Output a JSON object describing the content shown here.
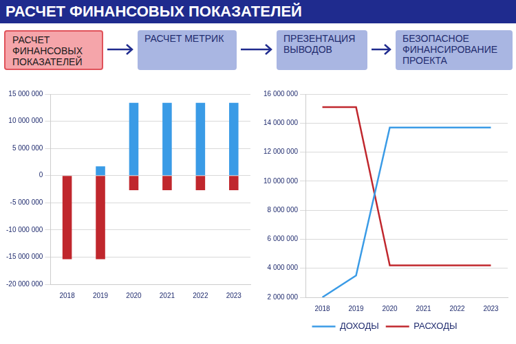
{
  "title": "РАСЧЕТ ФИНАНСОВЫХ ПОКАЗАТЕЛЕЙ",
  "steps": [
    "РАСЧЕТ ФИНАНСОВЫХ ПОКАЗАТЕЛЕЙ",
    "РАСЧЕТ МЕТРИК",
    "ПРЕЗЕНТАЦИЯ ВЫВОДОВ",
    "БЕЗОПАСНОЕ ФИНАНСИРОВАНИЕ ПРОЕКТА"
  ],
  "chart_data": [
    {
      "type": "bar",
      "categories": [
        "2018",
        "2019",
        "2020",
        "2021",
        "2022",
        "2023"
      ],
      "series": [
        {
          "color": "#3a9be6",
          "values": [
            null,
            1700000,
            13400000,
            13400000,
            13400000,
            13400000
          ]
        },
        {
          "color": "#c0272d",
          "values": [
            -15400000,
            -15400000,
            -2700000,
            -2700000,
            -2700000,
            -2700000
          ]
        }
      ],
      "stacked": true,
      "ylim": [
        -20000000,
        15000000
      ],
      "yticks": [
        {
          "value": -20000000,
          "label": "-20 000 000"
        },
        {
          "value": -15000000,
          "label": "-15 000 000"
        },
        {
          "value": -10000000,
          "label": "-10 000 000"
        },
        {
          "value": -5000000,
          "label": "-5 000 000"
        },
        0,
        {
          "value": 5000000,
          "label": "5 000 000"
        },
        {
          "value": 10000000,
          "label": "10 000 000"
        },
        {
          "value": 15000000,
          "label": "15 000 000"
        }
      ],
      "grid": true
    },
    {
      "type": "line",
      "categories": [
        "2018",
        "2019",
        "2020",
        "2021",
        "2022",
        "2023"
      ],
      "series": [
        {
          "name": "ДОХОДЫ",
          "color": "#3a9be6",
          "values": [
            2000000,
            3500000,
            13700000,
            13700000,
            13700000,
            13700000
          ]
        },
        {
          "name": "РАСХОДЫ",
          "color": "#c0272d",
          "values": [
            15100000,
            15100000,
            4200000,
            4200000,
            4200000,
            4200000
          ]
        }
      ],
      "ylim": [
        2000000,
        16000000
      ],
      "yticks": [
        {
          "value": 2000000,
          "label": "2 000 000"
        },
        {
          "value": 4000000,
          "label": "4 000 000"
        },
        {
          "value": 6000000,
          "label": "6 000 000"
        },
        {
          "value": 8000000,
          "label": "8 000 000"
        },
        {
          "value": 10000000,
          "label": "10 000 000"
        },
        {
          "value": 12000000,
          "label": "12 000 000"
        },
        {
          "value": 14000000,
          "label": "14 000 000"
        },
        {
          "value": 16000000,
          "label": "16 000 000"
        }
      ],
      "grid": true,
      "legend": "bottom"
    }
  ]
}
